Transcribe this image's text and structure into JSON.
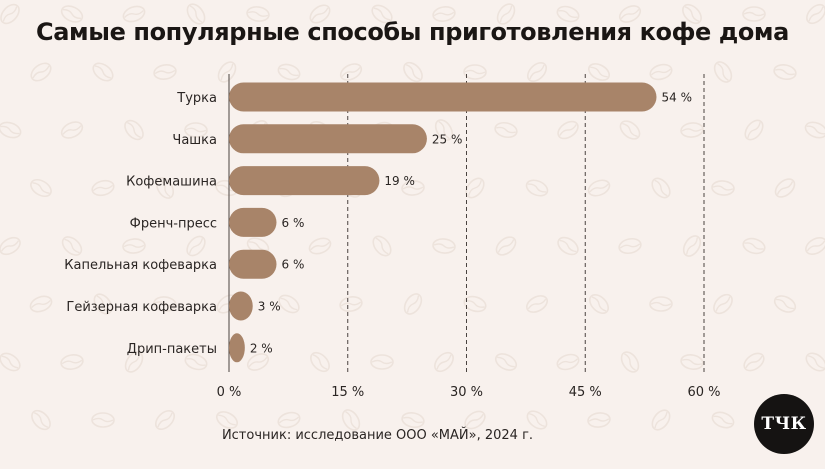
{
  "chart_data": {
    "type": "bar",
    "orientation": "horizontal",
    "title": "Самые популярные способы приготовления кофе дома",
    "categories": [
      "Турка",
      "Чашка",
      "Кофемашина",
      "Френч-пресс",
      "Капельная кофеварка",
      "Гейзерная кофеварка",
      "Дрип-пакеты"
    ],
    "values": [
      54,
      25,
      19,
      6,
      6,
      3,
      2
    ],
    "value_labels": [
      "54 %",
      "25 %",
      "19 %",
      "6 %",
      "6 %",
      "3 %",
      "2 %"
    ],
    "xlim": [
      0,
      60
    ],
    "x_ticks": [
      0,
      15,
      30,
      45,
      60
    ],
    "x_tick_labels": [
      "0 %",
      "15 %",
      "30 %",
      "45 %",
      "60 %"
    ],
    "grid": "vertical-dashed",
    "bar_color": "#a88469"
  },
  "source": "Источник: исследование ООО «МАЙ», 2024 г.",
  "logo": {
    "text": "ТЧК"
  },
  "colors": {
    "background": "#f8f1ed",
    "bar": "#a88469",
    "text": "#2a2523"
  }
}
